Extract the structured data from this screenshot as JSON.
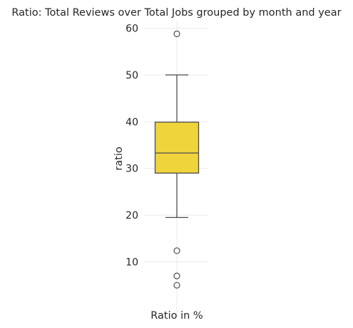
{
  "chart_data": {
    "type": "box",
    "title": "Ratio: Total Reviews over Total Jobs grouped by month and year",
    "xlabel": "Ratio in %",
    "ylabel": "ratio",
    "ylim": [
      2,
      62
    ],
    "yticks": [
      10,
      20,
      30,
      40,
      50,
      60
    ],
    "grid": true,
    "box": {
      "color": "#f0d43c",
      "edge_color": "#4d4d4d",
      "whisker_low": 19.5,
      "q1": 29.0,
      "median": 33.3,
      "q3": 39.9,
      "whisker_high": 50.0,
      "outliers": [
        58.8,
        12.4,
        7.0,
        5.0
      ]
    }
  }
}
